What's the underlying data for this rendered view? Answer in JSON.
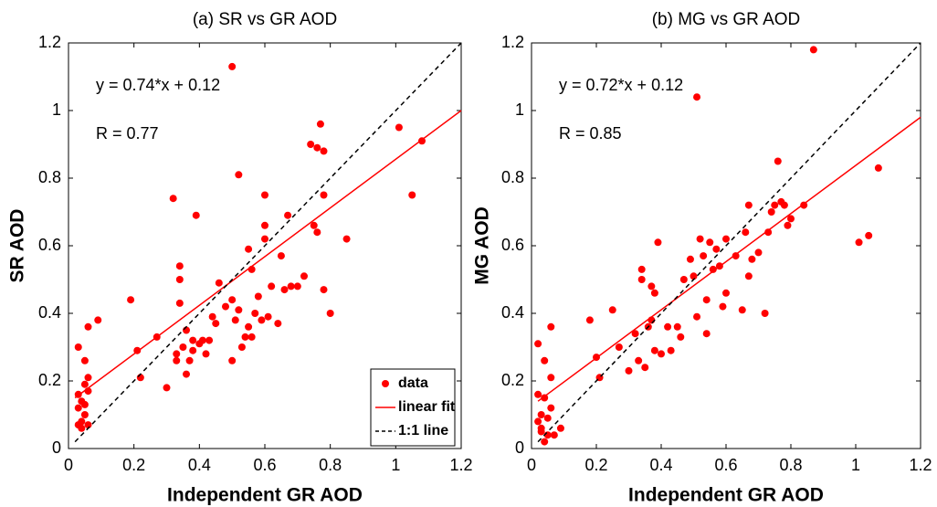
{
  "chart_data": [
    {
      "type": "scatter",
      "title": "(a) SR vs GR AOD",
      "xlabel": "Independent GR AOD",
      "ylabel": "SR AOD",
      "annotations": [
        "y = 0.74*x + 0.12",
        "R = 0.77"
      ],
      "xlim": [
        0,
        1.2
      ],
      "ylim": [
        0,
        1.2
      ],
      "xticks": [
        0,
        0.2,
        0.4,
        0.6,
        0.8,
        1,
        1.2
      ],
      "yticks": [
        0,
        0.2,
        0.4,
        0.6,
        0.8,
        1,
        1.2
      ],
      "legend": "lower right",
      "series": [
        {
          "name": "data",
          "kind": "points",
          "color": "#ff0000",
          "x": [
            0.03,
            0.03,
            0.03,
            0.04,
            0.04,
            0.03,
            0.05,
            0.04,
            0.05,
            0.06,
            0.06,
            0.05,
            0.06,
            0.05,
            0.06,
            0.09,
            0.19,
            0.21,
            0.22,
            0.27,
            0.3,
            0.32,
            0.33,
            0.33,
            0.34,
            0.34,
            0.34,
            0.35,
            0.36,
            0.36,
            0.37,
            0.38,
            0.38,
            0.39,
            0.4,
            0.41,
            0.42,
            0.43,
            0.44,
            0.45,
            0.46,
            0.48,
            0.5,
            0.5,
            0.5,
            0.51,
            0.52,
            0.52,
            0.53,
            0.54,
            0.55,
            0.55,
            0.56,
            0.56,
            0.57,
            0.58,
            0.59,
            0.6,
            0.6,
            0.6,
            0.61,
            0.62,
            0.64,
            0.65,
            0.66,
            0.67,
            0.68,
            0.7,
            0.72,
            0.74,
            0.75,
            0.76,
            0.76,
            0.77,
            0.78,
            0.78,
            0.78,
            0.8,
            0.85,
            1.01,
            1.05,
            1.08
          ],
          "values": [
            0.3,
            0.16,
            0.12,
            0.08,
            0.06,
            0.07,
            0.1,
            0.14,
            0.19,
            0.21,
            0.17,
            0.26,
            0.36,
            0.13,
            0.07,
            0.38,
            0.44,
            0.29,
            0.21,
            0.33,
            0.18,
            0.74,
            0.26,
            0.28,
            0.54,
            0.5,
            0.43,
            0.3,
            0.22,
            0.35,
            0.26,
            0.32,
            0.29,
            0.69,
            0.31,
            0.32,
            0.28,
            0.32,
            0.39,
            0.37,
            0.49,
            0.42,
            0.26,
            1.13,
            0.44,
            0.38,
            0.81,
            0.41,
            0.3,
            0.33,
            0.59,
            0.36,
            0.53,
            0.33,
            0.4,
            0.45,
            0.38,
            0.75,
            0.62,
            0.66,
            0.39,
            0.48,
            0.37,
            0.57,
            0.47,
            0.69,
            0.48,
            0.48,
            0.51,
            0.9,
            0.66,
            0.64,
            0.89,
            0.96,
            0.88,
            0.75,
            0.47,
            0.4,
            0.62,
            0.95,
            0.75,
            0.91
          ]
        },
        {
          "name": "linear fit",
          "kind": "line",
          "color": "#ff0000",
          "x": [
            0.02,
            1.2
          ],
          "values": [
            0.15,
            1.0
          ]
        },
        {
          "name": "1:1 line",
          "kind": "line",
          "dashed": true,
          "color": "#000000",
          "x": [
            0.02,
            1.2
          ],
          "values": [
            0.02,
            1.2
          ]
        }
      ]
    },
    {
      "type": "scatter",
      "title": "(b) MG vs GR AOD",
      "xlabel": "Independent GR AOD",
      "ylabel": "MG AOD",
      "annotations": [
        "y = 0.72*x + 0.12",
        "R = 0.85"
      ],
      "xlim": [
        0,
        1.2
      ],
      "ylim": [
        0,
        1.2
      ],
      "xticks": [
        0,
        0.2,
        0.4,
        0.6,
        0.8,
        1,
        1.2
      ],
      "yticks": [
        0,
        0.2,
        0.4,
        0.6,
        0.8,
        1,
        1.2
      ],
      "series": [
        {
          "kind": "points",
          "color": "#ff0000",
          "x": [
            0.02,
            0.02,
            0.02,
            0.03,
            0.03,
            0.03,
            0.04,
            0.04,
            0.04,
            0.05,
            0.05,
            0.06,
            0.06,
            0.06,
            0.07,
            0.09,
            0.18,
            0.2,
            0.21,
            0.25,
            0.27,
            0.3,
            0.32,
            0.33,
            0.34,
            0.34,
            0.35,
            0.36,
            0.37,
            0.37,
            0.38,
            0.38,
            0.39,
            0.4,
            0.42,
            0.43,
            0.45,
            0.46,
            0.47,
            0.49,
            0.5,
            0.51,
            0.51,
            0.52,
            0.53,
            0.54,
            0.54,
            0.55,
            0.56,
            0.57,
            0.58,
            0.59,
            0.6,
            0.6,
            0.63,
            0.65,
            0.66,
            0.67,
            0.67,
            0.68,
            0.7,
            0.72,
            0.73,
            0.74,
            0.75,
            0.76,
            0.77,
            0.78,
            0.79,
            0.8,
            0.84,
            0.87,
            1.01,
            1.04,
            1.07
          ],
          "values": [
            0.31,
            0.16,
            0.08,
            0.06,
            0.1,
            0.05,
            0.15,
            0.26,
            0.02,
            0.04,
            0.09,
            0.36,
            0.21,
            0.12,
            0.04,
            0.06,
            0.38,
            0.27,
            0.21,
            0.41,
            0.3,
            0.23,
            0.34,
            0.26,
            0.5,
            0.53,
            0.24,
            0.36,
            0.38,
            0.48,
            0.46,
            0.29,
            0.61,
            0.28,
            0.36,
            0.29,
            0.36,
            0.33,
            0.5,
            0.56,
            0.51,
            1.04,
            0.39,
            0.62,
            0.57,
            0.44,
            0.34,
            0.61,
            0.53,
            0.59,
            0.54,
            0.42,
            0.62,
            0.46,
            0.57,
            0.41,
            0.64,
            0.72,
            0.51,
            0.56,
            0.58,
            0.4,
            0.64,
            0.7,
            0.72,
            0.85,
            0.73,
            0.72,
            0.66,
            0.68,
            0.72,
            1.18,
            0.61,
            0.63,
            0.83
          ]
        },
        {
          "kind": "line",
          "color": "#ff0000",
          "x": [
            0.02,
            1.2
          ],
          "values": [
            0.14,
            0.98
          ]
        },
        {
          "kind": "line",
          "dashed": true,
          "color": "#000000",
          "x": [
            0.02,
            1.2
          ],
          "values": [
            0.02,
            1.2
          ]
        }
      ]
    }
  ]
}
